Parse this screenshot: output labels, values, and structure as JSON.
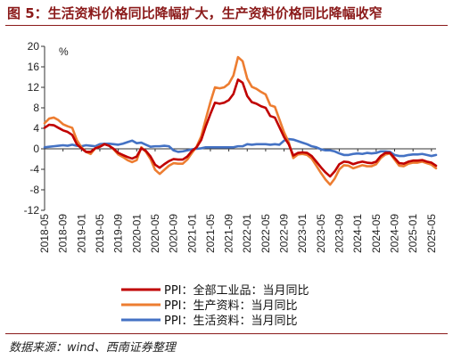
{
  "title": "图 5：生活资料价格同比降幅扩大，生产资料价格同比降幅收窄",
  "source": "数据来源：wind、西南证券整理",
  "chart_data": {
    "type": "line",
    "ylabel": "%",
    "ylim": [
      -12,
      20
    ],
    "y_ticks": [
      20,
      16,
      12,
      8,
      4,
      0,
      -4,
      -8,
      -12
    ],
    "x_tick_labels": [
      "2018-05",
      "2018-09",
      "2019-01",
      "2019-05",
      "2019-09",
      "2020-01",
      "2020-05",
      "2020-09",
      "2021-01",
      "2021-05",
      "2021-09",
      "2022-01",
      "2022-05",
      "2022-09",
      "2023-01",
      "2023-05",
      "2023-09",
      "2024-01",
      "2024-05",
      "2024-09",
      "2025-01",
      "2025-05"
    ],
    "legend_position": "bottom-center",
    "colors": {
      "ppi": "#C00000",
      "production": "#ED7D31",
      "living": "#4472C4"
    },
    "series": [
      {
        "name": "PPI：全部工业品：当月同比",
        "color": "#C00000",
        "values": [
          4.1,
          4.7,
          4.6,
          4.1,
          3.6,
          3.3,
          2.7,
          0.9,
          0.1,
          -0.6,
          -0.6,
          0.1,
          0.4,
          0.9,
          0.6,
          0.0,
          -0.8,
          -1.2,
          -1.6,
          -1.9,
          -1.5,
          0.1,
          -0.4,
          -1.5,
          -3.1,
          -3.7,
          -3.0,
          -2.4,
          -2.0,
          -2.1,
          -2.1,
          -1.5,
          -0.4,
          0.3,
          1.7,
          4.4,
          6.8,
          9.0,
          8.8,
          9.0,
          9.5,
          10.7,
          13.5,
          12.9,
          10.3,
          9.1,
          8.8,
          8.3,
          8.0,
          6.4,
          6.1,
          4.2,
          2.3,
          0.9,
          -1.3,
          -0.8,
          -0.7,
          -0.8,
          -1.4,
          -2.5,
          -3.6,
          -4.6,
          -5.4,
          -4.4,
          -3.0,
          -2.5,
          -2.6,
          -3.0,
          -2.7,
          -2.5,
          -2.7,
          -2.8,
          -2.5,
          -1.4,
          -0.8,
          -0.8,
          -1.8,
          -2.8,
          -2.9,
          -2.5,
          -2.3,
          -2.3,
          -2.2,
          -2.5,
          -2.7,
          -3.3
        ]
      },
      {
        "name": "PPI：生产资料：当月同比",
        "color": "#ED7D31",
        "values": [
          5.0,
          5.9,
          6.1,
          5.6,
          4.8,
          4.4,
          4.1,
          1.7,
          0.3,
          -0.6,
          -1.0,
          0.1,
          0.5,
          0.9,
          0.6,
          -0.1,
          -1.1,
          -1.6,
          -2.2,
          -2.6,
          -2.2,
          0.3,
          -0.6,
          -2.0,
          -4.1,
          -4.9,
          -4.1,
          -3.3,
          -2.8,
          -2.9,
          -2.9,
          -2.1,
          -0.8,
          0.4,
          2.4,
          5.8,
          9.1,
          12.0,
          11.8,
          12.0,
          12.7,
          14.3,
          17.9,
          17.1,
          13.7,
          12.1,
          11.7,
          11.1,
          10.6,
          8.5,
          8.2,
          5.7,
          3.2,
          1.3,
          -1.8,
          -1.1,
          -1.0,
          -1.2,
          -1.9,
          -3.3,
          -4.7,
          -6.0,
          -7.0,
          -5.8,
          -4.0,
          -3.2,
          -3.3,
          -3.8,
          -3.5,
          -3.2,
          -3.4,
          -3.4,
          -3.0,
          -1.8,
          -1.1,
          -0.9,
          -2.1,
          -3.3,
          -3.4,
          -2.9,
          -2.7,
          -2.7,
          -2.5,
          -2.8,
          -3.1,
          -3.8
        ]
      },
      {
        "name": "PPI：生活资料：当月同比",
        "color": "#4472C4",
        "values": [
          0.3,
          0.4,
          0.5,
          0.6,
          0.7,
          0.6,
          0.8,
          0.6,
          0.5,
          0.7,
          0.6,
          0.5,
          0.9,
          1.0,
          1.0,
          0.9,
          0.8,
          1.0,
          1.3,
          1.6,
          1.1,
          1.2,
          0.8,
          0.4,
          0.5,
          0.5,
          0.6,
          0.5,
          -0.3,
          -0.6,
          -0.5,
          -0.3,
          -0.1,
          0.0,
          0.1,
          0.3,
          0.3,
          0.3,
          0.3,
          0.3,
          0.3,
          0.3,
          0.5,
          0.5,
          0.9,
          0.8,
          0.9,
          0.9,
          0.9,
          0.8,
          0.9,
          0.8,
          1.6,
          1.9,
          1.8,
          1.5,
          1.2,
          0.9,
          0.5,
          0.3,
          -0.1,
          -0.3,
          -0.3,
          -0.5,
          -0.9,
          -1.2,
          -1.2,
          -1.0,
          -0.9,
          -1.0,
          -0.8,
          -0.9,
          -0.8,
          -0.5,
          -0.5,
          -0.6,
          -1.2,
          -1.4,
          -1.4,
          -1.2,
          -1.1,
          -1.1,
          -1.0,
          -1.2,
          -1.4,
          -1.2
        ]
      }
    ]
  }
}
